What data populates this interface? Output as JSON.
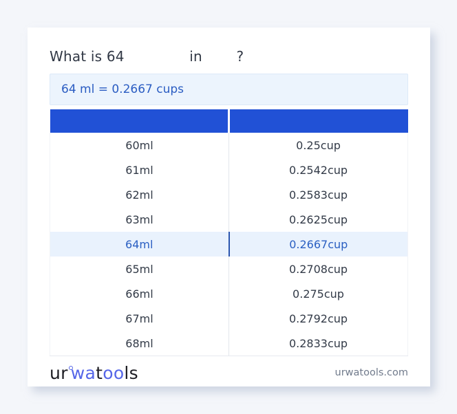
{
  "title": {
    "prefix": "What is 64",
    "connector": "in",
    "suffix": "?"
  },
  "result": {
    "text": "64 ml = 0.2667 cups"
  },
  "conversion_table": {
    "columns": [
      "",
      ""
    ],
    "highlighted_value": "64ml",
    "rows": [
      {
        "ml": "60ml",
        "cups": "0.25cup"
      },
      {
        "ml": "61ml",
        "cups": "0.2542cup"
      },
      {
        "ml": "62ml",
        "cups": "0.2583cup"
      },
      {
        "ml": "63ml",
        "cups": "0.2625cup"
      },
      {
        "ml": "64ml",
        "cups": "0.2667cup"
      },
      {
        "ml": "65ml",
        "cups": "0.2708cup"
      },
      {
        "ml": "66ml",
        "cups": "0.275cup"
      },
      {
        "ml": "67ml",
        "cups": "0.2792cup"
      },
      {
        "ml": "68ml",
        "cups": "0.2833cup"
      }
    ]
  },
  "footer": {
    "logo": {
      "parts": [
        {
          "text": "ur",
          "color": "dark"
        },
        {
          "type": "ring"
        },
        {
          "text": "wa",
          "color": "accent"
        },
        {
          "text": "t",
          "color": "dark"
        },
        {
          "text": "oo",
          "color": "accent"
        },
        {
          "text": "ls",
          "color": "dark"
        }
      ]
    },
    "domain": "urwatools.com"
  },
  "colors": {
    "page_background": "#f4f6fa",
    "table_header_blue": "#2151d6",
    "logo_accent_blue": "#5566e8",
    "result_box_background": "#ecf4fd",
    "result_text_blue": "#2a5cc2",
    "highlight_row_background": "#e9f2fd",
    "highlight_row_text": "#2a5fc2"
  }
}
